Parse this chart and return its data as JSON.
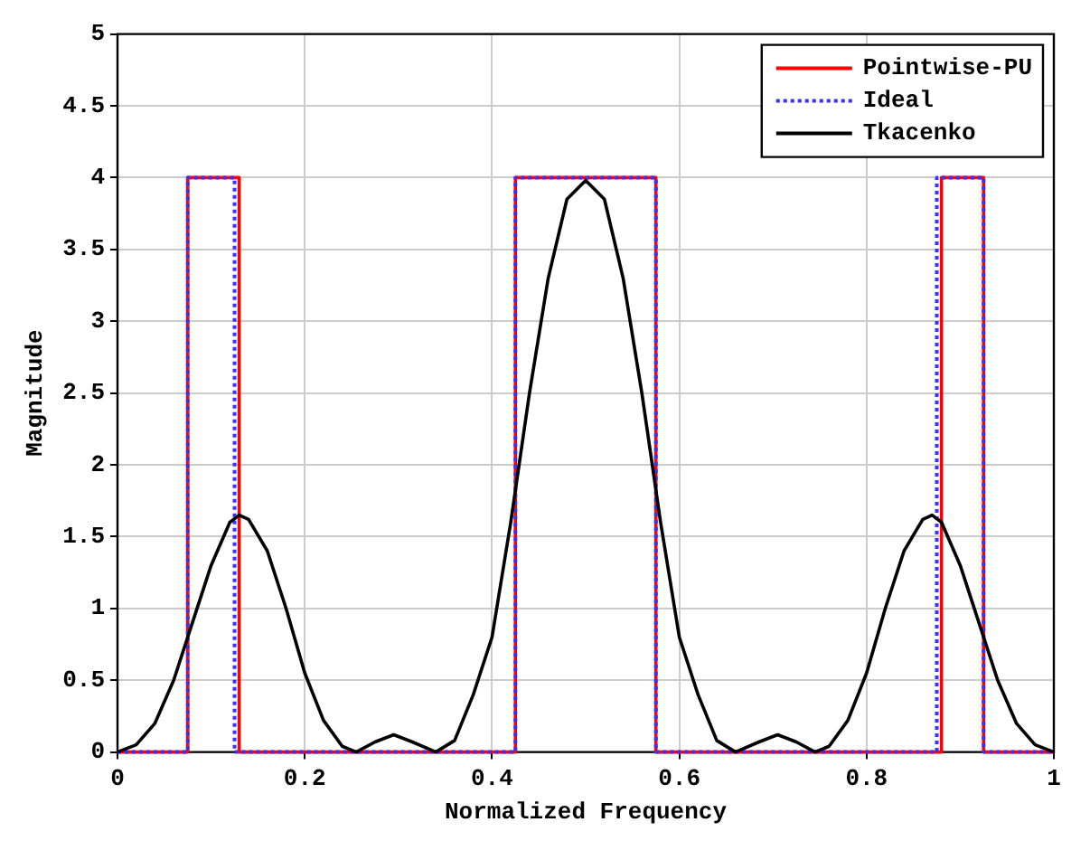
{
  "chart_data": {
    "type": "line",
    "xlabel": "Normalized Frequency",
    "ylabel": "Magnitude",
    "xlim": [
      0,
      1
    ],
    "xticks": [
      0,
      0.2,
      0.4,
      0.6,
      0.8,
      1
    ],
    "ylim": [
      0,
      5
    ],
    "yticks": [
      0,
      0.5,
      1,
      1.5,
      2,
      2.5,
      3,
      3.5,
      4,
      4.5,
      5
    ],
    "grid": true,
    "legend": "top right",
    "marker": "none",
    "series": [
      {
        "name": "Pointwise-PU",
        "color": "#ff0000",
        "line_style": "solid",
        "x": [
          0,
          0.075,
          0.075,
          0.13,
          0.13,
          0.425,
          0.425,
          0.575,
          0.575,
          0.88,
          0.88,
          0.925,
          0.925,
          1
        ],
        "values": [
          0,
          0,
          4,
          4,
          0,
          0,
          4,
          4,
          0,
          0,
          4,
          4,
          0,
          0
        ]
      },
      {
        "name": "Ideal",
        "color": "#3333ff",
        "line_style": "dotted",
        "x": [
          0,
          0.075,
          0.075,
          0.125,
          0.125,
          0.425,
          0.425,
          0.575,
          0.575,
          0.875,
          0.875,
          0.925,
          0.925,
          1
        ],
        "values": [
          0,
          0,
          4,
          4,
          0,
          0,
          4,
          4,
          0,
          0,
          4,
          4,
          0,
          0
        ]
      },
      {
        "name": "Tkacenko",
        "color": "#000000",
        "line_style": "solid",
        "x": [
          0,
          0.02,
          0.04,
          0.06,
          0.08,
          0.1,
          0.12,
          0.13,
          0.14,
          0.16,
          0.18,
          0.2,
          0.22,
          0.24,
          0.255,
          0.275,
          0.295,
          0.315,
          0.34,
          0.36,
          0.38,
          0.4,
          0.42,
          0.44,
          0.46,
          0.48,
          0.5,
          0.52,
          0.54,
          0.56,
          0.58,
          0.6,
          0.62,
          0.64,
          0.66,
          0.685,
          0.705,
          0.725,
          0.745,
          0.76,
          0.78,
          0.8,
          0.82,
          0.84,
          0.86,
          0.87,
          0.88,
          0.9,
          0.92,
          0.94,
          0.96,
          0.98,
          1
        ],
        "values": [
          0,
          0.05,
          0.2,
          0.5,
          0.9,
          1.3,
          1.6,
          1.65,
          1.62,
          1.4,
          1,
          0.55,
          0.22,
          0.04,
          0,
          0.07,
          0.12,
          0.07,
          0,
          0.08,
          0.4,
          0.8,
          1.6,
          2.5,
          3.3,
          3.85,
          3.98,
          3.85,
          3.3,
          2.5,
          1.6,
          0.8,
          0.4,
          0.08,
          0,
          0.07,
          0.12,
          0.07,
          0,
          0.04,
          0.22,
          0.55,
          1,
          1.4,
          1.62,
          1.65,
          1.6,
          1.3,
          0.9,
          0.5,
          0.2,
          0.05,
          0
        ]
      }
    ]
  }
}
